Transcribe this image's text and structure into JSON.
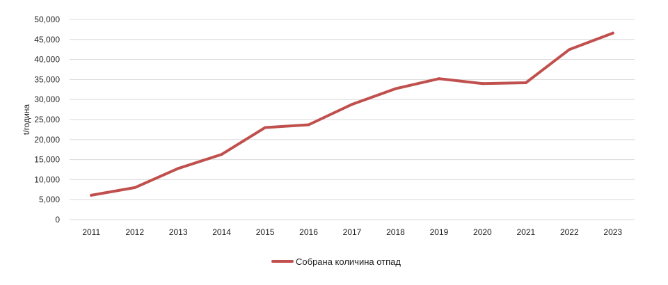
{
  "chart_data": {
    "type": "line",
    "title": "",
    "xlabel": "",
    "ylabel": "t/година",
    "x": [
      "2011",
      "2012",
      "2013",
      "2014",
      "2015",
      "2016",
      "2017",
      "2018",
      "2019",
      "2020",
      "2021",
      "2022",
      "2023"
    ],
    "series": [
      {
        "name": "Собрана количина отпад",
        "color": "#c0504d",
        "values": [
          6100,
          8000,
          12800,
          16300,
          23000,
          23700,
          28800,
          32700,
          35200,
          34000,
          34200,
          42500,
          46600
        ]
      }
    ],
    "ylim": [
      0,
      50000
    ],
    "yticks": [
      0,
      5000,
      10000,
      15000,
      20000,
      25000,
      30000,
      35000,
      40000,
      45000,
      50000
    ],
    "ytick_labels": [
      "0",
      "5,000",
      "10,000",
      "15,000",
      "20,000",
      "25,000",
      "30,000",
      "35,000",
      "40,000",
      "45,000",
      "50,000"
    ],
    "grid": true,
    "legend_position": "bottom"
  }
}
